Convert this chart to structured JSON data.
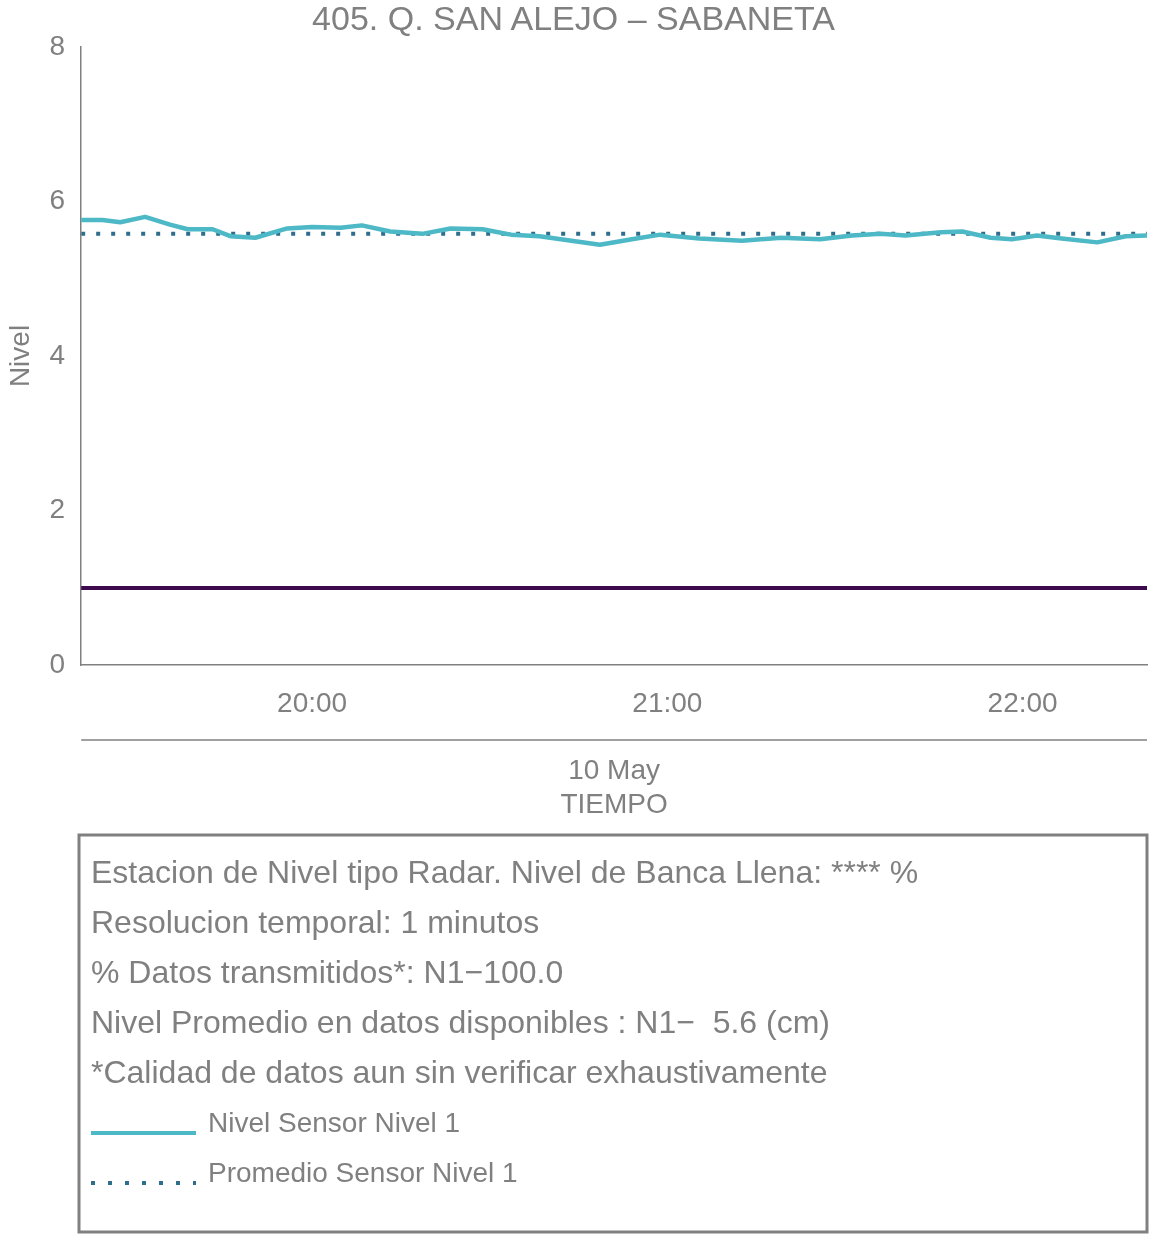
{
  "chart_data": {
    "type": "line",
    "title": "405. Q. SAN ALEJO – SABANETA",
    "xlabel": "10 May\nTIEMPO",
    "ylabel": "Nivel",
    "xlim": [
      19.35,
      22.35
    ],
    "xticks": [
      {
        "value": 20,
        "label": "20:00"
      },
      {
        "value": 21,
        "label": "21:00"
      },
      {
        "value": 22,
        "label": "22:00"
      }
    ],
    "ylim": [
      0,
      8
    ],
    "yticks": [
      0,
      2,
      4,
      6,
      8
    ],
    "grid": false,
    "legend": "bottom",
    "marker": "none",
    "series": [
      {
        "name": "Nivel Sensor Nivel 1",
        "color": "#4db8c6",
        "line_style": "solid",
        "x": [
          19.35,
          19.41,
          19.46,
          19.53,
          19.6,
          19.65,
          19.72,
          19.77,
          19.84,
          19.93,
          20.0,
          20.08,
          20.14,
          20.22,
          20.31,
          20.39,
          20.48,
          20.56,
          20.64,
          20.73,
          20.81,
          20.9,
          20.98,
          21.09,
          21.21,
          21.32,
          21.43,
          21.52,
          21.6,
          21.67,
          21.77,
          21.83,
          21.91,
          21.97,
          22.04,
          22.11,
          22.21,
          22.29,
          22.35
        ],
        "values": [
          5.76,
          5.76,
          5.73,
          5.8,
          5.7,
          5.64,
          5.64,
          5.55,
          5.53,
          5.65,
          5.67,
          5.66,
          5.69,
          5.61,
          5.58,
          5.65,
          5.64,
          5.57,
          5.55,
          5.49,
          5.44,
          5.51,
          5.57,
          5.52,
          5.49,
          5.53,
          5.51,
          5.56,
          5.58,
          5.56,
          5.6,
          5.61,
          5.53,
          5.51,
          5.56,
          5.52,
          5.47,
          5.55,
          5.56
        ]
      },
      {
        "name": "Promedio Sensor Nivel 1",
        "color": "#2e6e8c",
        "line_style": "dotted",
        "x": [
          19.35,
          22.35
        ],
        "values": [
          5.58,
          5.58
        ]
      }
    ],
    "ref_lines": [
      {
        "axis": "y",
        "value": 1,
        "color": "#3d0a4e"
      }
    ],
    "annotations": [
      "Estacion de Nivel tipo Radar. Nivel de Banca Llena: **** %",
      "Resolucion temporal: 1 minutos",
      "% Datos transmitidos*: N1−100.0",
      "Nivel Promedio en datos disponibles : N1−  5.6 (cm)",
      "*Calidad de datos aun sin verificar exhaustivamente"
    ]
  }
}
